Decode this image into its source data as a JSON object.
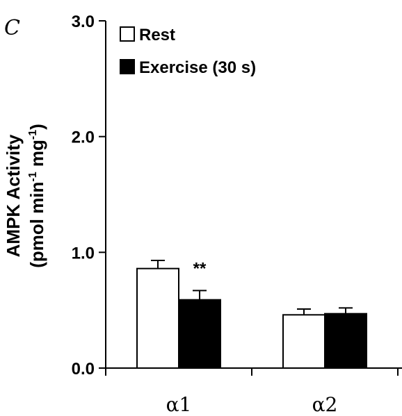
{
  "panel_label": "C",
  "chart_data": {
    "type": "bar",
    "ylabel_line1": "AMPK Activity",
    "ylabel_line2": "(pmol min-1 mg-1)",
    "ylabel_line2_parts": {
      "open": "(pmol min",
      "sup1": "-1",
      "mid": " mg",
      "sup2": "-1",
      "close": ")"
    },
    "ylim": [
      0,
      3.0
    ],
    "yticks": [
      {
        "value": 0.0,
        "label": "0.0"
      },
      {
        "value": 1.0,
        "label": "1.0"
      },
      {
        "value": 2.0,
        "label": "2.0"
      },
      {
        "value": 3.0,
        "label": "3.0"
      }
    ],
    "categories": [
      "α1",
      "α2"
    ],
    "series": [
      {
        "name": "Rest",
        "color": "#ffffff",
        "values": [
          0.86,
          0.46
        ],
        "errors": [
          0.07,
          0.05
        ]
      },
      {
        "name": "Exercise (30 s)",
        "color": "#000000",
        "values": [
          0.59,
          0.47
        ],
        "errors": [
          0.08,
          0.05
        ]
      }
    ],
    "annotations": [
      {
        "category_index": 0,
        "series_index": 1,
        "text": "**"
      }
    ],
    "legend_position": "top-left",
    "grid": false
  }
}
